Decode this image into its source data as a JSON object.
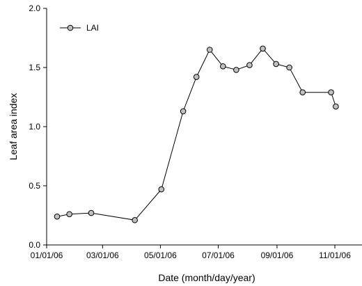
{
  "chart_data": {
    "type": "line",
    "title": "",
    "xlabel": "Date (month/day/year)",
    "ylabel": "Leaf area index",
    "xlim": [
      "2006-01-01",
      "2006-12-01"
    ],
    "ylim": [
      0.0,
      2.0
    ],
    "grid": false,
    "legend_position": "top-left",
    "x_tick_labels": [
      "01/01/06",
      "03/01/06",
      "05/01/06",
      "07/01/06",
      "09/01/06",
      "11/01/06"
    ],
    "x_tick_dates": [
      "2006-01-01",
      "2006-03-01",
      "2006-05-01",
      "2006-07-01",
      "2006-09-01",
      "2006-11-01"
    ],
    "y_tick_labels": [
      "0.0",
      "0.5",
      "1.0",
      "1.5",
      "2.0"
    ],
    "y_tick_values": [
      0.0,
      0.5,
      1.0,
      1.5,
      2.0
    ],
    "series": [
      {
        "name": "LAI",
        "marker_fill": "#c0c0c0",
        "line_color": "#000000",
        "points": [
          {
            "x": "2006-01-12",
            "y": 0.24
          },
          {
            "x": "2006-01-25",
            "y": 0.26
          },
          {
            "x": "2006-02-17",
            "y": 0.27
          },
          {
            "x": "2006-04-04",
            "y": 0.21
          },
          {
            "x": "2006-05-02",
            "y": 0.47
          },
          {
            "x": "2006-05-25",
            "y": 1.13
          },
          {
            "x": "2006-06-08",
            "y": 1.42
          },
          {
            "x": "2006-06-22",
            "y": 1.65
          },
          {
            "x": "2006-07-06",
            "y": 1.51
          },
          {
            "x": "2006-07-20",
            "y": 1.48
          },
          {
            "x": "2006-08-03",
            "y": 1.52
          },
          {
            "x": "2006-08-17",
            "y": 1.66
          },
          {
            "x": "2006-08-31",
            "y": 1.53
          },
          {
            "x": "2006-09-14",
            "y": 1.5
          },
          {
            "x": "2006-09-28",
            "y": 1.29
          },
          {
            "x": "2006-10-28",
            "y": 1.29
          },
          {
            "x": "2006-11-02",
            "y": 1.17
          }
        ]
      }
    ]
  }
}
